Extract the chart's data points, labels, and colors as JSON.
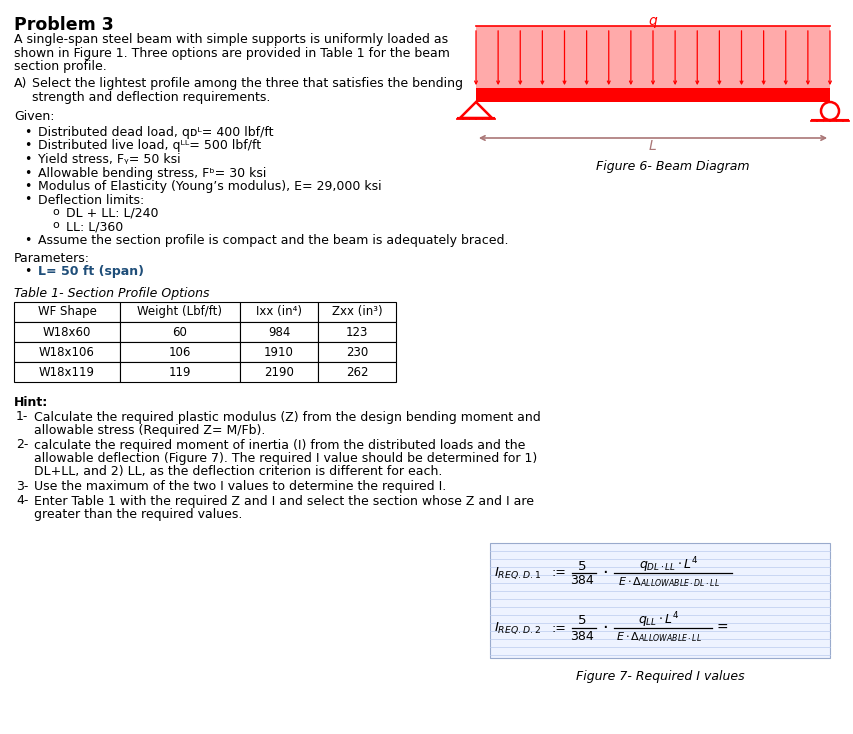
{
  "title": "Problem 3",
  "intro_line1": "A single-span steel beam with simple supports is uniformly loaded as",
  "intro_line2": "shown in Figure 1. Three options are provided in Table 1 for the beam",
  "intro_line3": "section profile.",
  "part_a_label": "A)",
  "part_a_line1": "Select the lightest profile among the three that satisfies the bending",
  "part_a_line2": "strength and deflection requirements.",
  "given_label": "Given:",
  "given_items": [
    "Distributed dead load, qᴅᴸ= 400 lbf/ft",
    "Distributed live load, qᴸᴸ= 500 lbf/ft",
    "Yield stress, Fᵧ= 50 ksi",
    "Allowable bending stress, Fᵇ= 30 ksi",
    "Modulus of Elasticity (Young’s modulus), E= 29,000 ksi",
    "Deflection limits:",
    "Assume the section profile is compact and the beam is adequately braced."
  ],
  "deflection_sub": [
    "DL + LL: L/240",
    "LL: L/360"
  ],
  "params_label": "Parameters:",
  "params_item": "L= 50 ft (span)",
  "table_title": "Table 1- Section Profile Options",
  "table_headers": [
    "WF Shape",
    "Weight (Lbf/ft)",
    "Ixx (in⁴)",
    "Zxx (in³)"
  ],
  "table_rows": [
    [
      "W18x60",
      "60",
      "984",
      "123"
    ],
    [
      "W18x106",
      "106",
      "1910",
      "230"
    ],
    [
      "W18x119",
      "119",
      "2190",
      "262"
    ]
  ],
  "hint_label": "Hint:",
  "hint_items": [
    [
      "Calculate the required plastic modulus (Z) from the design bending moment and",
      "allowable stress (Required Z= M/Fb)."
    ],
    [
      "calculate the required moment of inertia (I) from the distributed loads and the",
      "allowable deflection (Figure 7). The required I value should be determined for 1)",
      "DL+LL, and 2) LL, as the deflection criterion is different for each."
    ],
    [
      "Use the maximum of the two I values to determine the required I."
    ],
    [
      "Enter Table 1 with the required Z and I and select the section whose Z and I are",
      "greater than the required values."
    ]
  ],
  "fig6_caption": "Figure 6- Beam Diagram",
  "fig7_caption": "Figure 7- Required I values",
  "beam_color": "#FF0000",
  "load_fill_color": "#FFAAAA",
  "dim_arrow_color": "#AA7777",
  "formula_box_color": "#EEF3FF",
  "formula_box_border": "#99AACC",
  "formula_grid_color": "#BBCCEE",
  "text_blue": "#1F4E79"
}
